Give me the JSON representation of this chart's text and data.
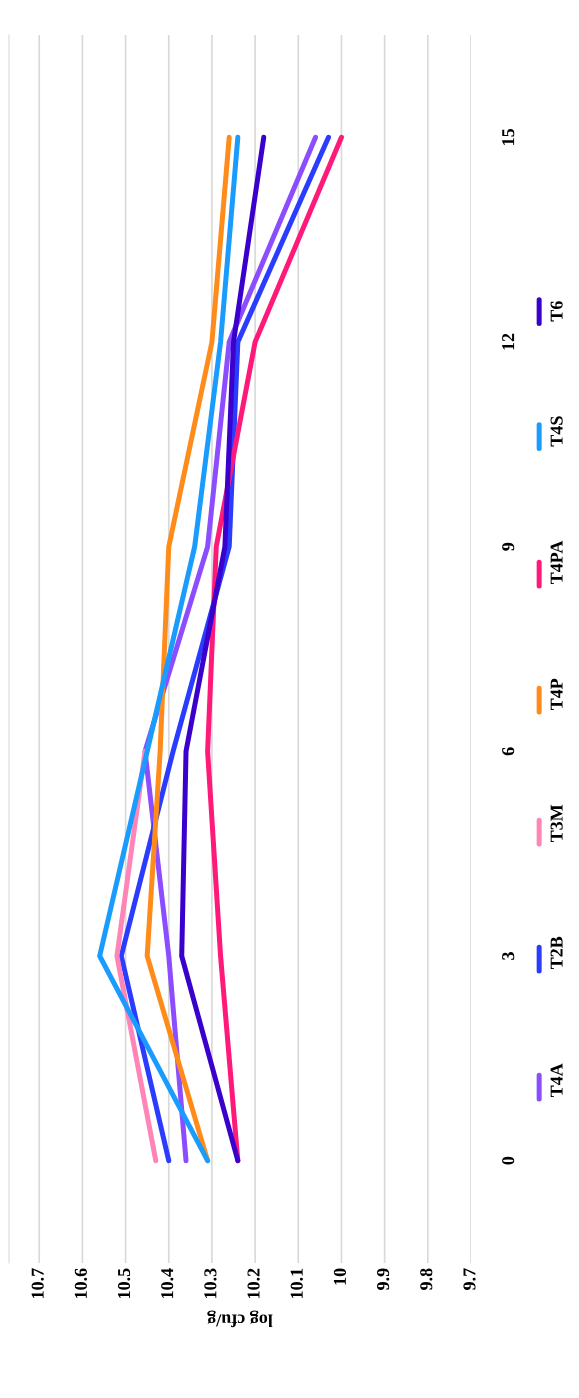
{
  "chart_data": {
    "type": "line",
    "orientation": "horizontal",
    "xlabel": "log cfu/g",
    "categories": [
      "15",
      "12",
      "9",
      "6",
      "3",
      "0"
    ],
    "series": [
      {
        "name": "T4A",
        "color": "#8b4dff",
        "values": [
          10.06,
          10.26,
          10.31,
          10.455,
          10.4,
          10.36
        ]
      },
      {
        "name": "T2B",
        "color": "#2a3cff",
        "values": [
          10.03,
          10.24,
          10.26,
          10.39,
          10.51,
          10.4
        ]
      },
      {
        "name": "T3M",
        "color": "#ff85b8",
        "values": [
          null,
          null,
          null,
          10.455,
          10.52,
          10.43
        ]
      },
      {
        "name": "T4P",
        "color": "#ff8c1a",
        "values": [
          10.26,
          10.3,
          10.4,
          10.42,
          10.45,
          10.31
        ]
      },
      {
        "name": "T4PA",
        "color": "#ff1a7a",
        "values": [
          10.0,
          10.2,
          10.29,
          10.31,
          10.28,
          10.24
        ]
      },
      {
        "name": "T4S",
        "color": "#1a9cff",
        "values": [
          10.24,
          10.28,
          10.34,
          10.45,
          10.56,
          10.31
        ]
      },
      {
        "name": "T6",
        "color": "#3a00cc",
        "values": [
          10.18,
          10.25,
          10.27,
          10.36,
          10.37,
          10.24
        ]
      }
    ],
    "xlim": [
      10.77,
      9.7
    ],
    "xticks": [
      10.7,
      10.6,
      10.5,
      10.4,
      10.3,
      10.2,
      10.1,
      10,
      9.9,
      9.8,
      9.7
    ],
    "grid": "x",
    "legend": "right",
    "line_style": "solid",
    "marker": "none"
  }
}
